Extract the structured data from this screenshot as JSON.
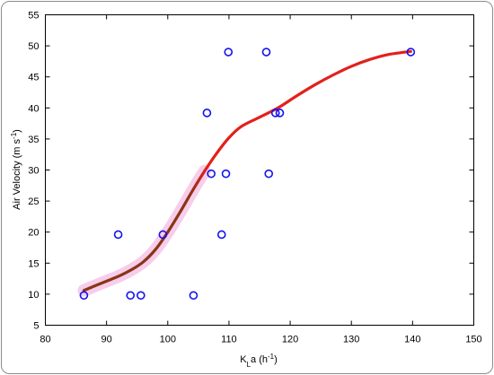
{
  "chart_data": {
    "type": "scatter",
    "xlabel": {
      "base": "K",
      "sub": "L",
      "rest": "a (h",
      "sup": "-1",
      "close": ")"
    },
    "ylabel": {
      "base": "Air Velocity (m s",
      "sup": "-1",
      "close": ")"
    },
    "xlim": [
      80,
      150
    ],
    "ylim": [
      5,
      55
    ],
    "xticks": [
      80,
      90,
      100,
      110,
      120,
      130,
      140,
      150
    ],
    "yticks": [
      5,
      10,
      15,
      20,
      25,
      30,
      35,
      40,
      45,
      50,
      55
    ],
    "grid": false,
    "series": [
      {
        "type": "scatter",
        "marker": "open-circle",
        "color": "#1212ee",
        "points": [
          [
            86.3,
            9.8
          ],
          [
            91.9,
            19.6
          ],
          [
            93.9,
            9.8
          ],
          [
            95.6,
            9.8
          ],
          [
            99.2,
            19.6
          ],
          [
            104.2,
            9.8
          ],
          [
            106.4,
            39.2
          ],
          [
            107.1,
            29.4
          ],
          [
            108.8,
            19.6
          ],
          [
            109.5,
            29.4
          ],
          [
            109.9,
            49.0
          ],
          [
            116.1,
            49.0
          ],
          [
            116.5,
            29.4
          ],
          [
            117.6,
            39.2
          ],
          [
            118.3,
            39.2
          ],
          [
            139.7,
            49.0
          ]
        ]
      },
      {
        "type": "line",
        "smooth": true,
        "color": "#e3201b",
        "lower_color": "#8a3514",
        "band_color": "#f6c8ea",
        "points": [
          [
            86.3,
            10.6
          ],
          [
            88,
            11.3
          ],
          [
            90,
            12.1
          ],
          [
            92,
            12.9
          ],
          [
            94,
            13.9
          ],
          [
            96,
            15.2
          ],
          [
            98,
            17.2
          ],
          [
            100,
            20.0
          ],
          [
            102,
            23.2
          ],
          [
            104,
            26.6
          ],
          [
            106,
            29.8
          ],
          [
            108,
            32.7
          ],
          [
            110,
            35.2
          ],
          [
            112,
            37.0
          ],
          [
            115,
            38.5
          ],
          [
            118,
            40.0
          ],
          [
            121,
            41.9
          ],
          [
            124,
            43.7
          ],
          [
            127,
            45.3
          ],
          [
            130,
            46.7
          ],
          [
            133,
            47.8
          ],
          [
            136,
            48.6
          ],
          [
            139.7,
            49.1
          ]
        ]
      }
    ]
  }
}
